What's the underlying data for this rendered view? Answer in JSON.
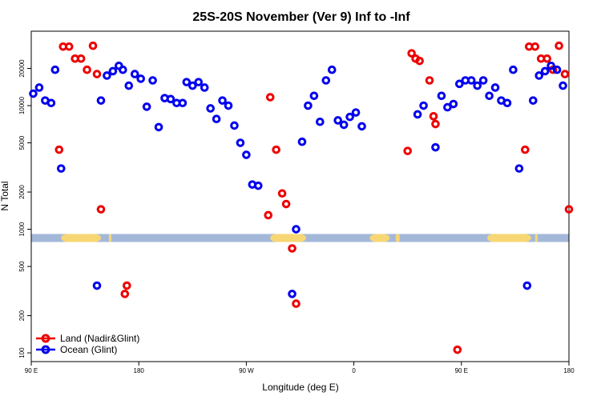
{
  "chart_data": {
    "type": "scatter",
    "title": "25S-20S November (Ver 9)   Inf to -Inf",
    "xlabel": "Longitude (deg E)",
    "ylabel": "N Total",
    "y_scale": "log",
    "xlim": [
      -90,
      180
    ],
    "ylim": [
      85,
      40000
    ],
    "x_ticks": [
      {
        "value": -90,
        "label": "90 E"
      },
      {
        "value": -36,
        "label": "180"
      },
      {
        "value": 18,
        "label": "90 W"
      },
      {
        "value": 72,
        "label": "0"
      },
      {
        "value": 126,
        "label": "90 E"
      },
      {
        "value": 180,
        "label": "180"
      }
    ],
    "y_ticks": [
      {
        "value": 100,
        "label": "100"
      },
      {
        "value": 200,
        "label": "200"
      },
      {
        "value": 500,
        "label": "500"
      },
      {
        "value": 1000,
        "label": "1000"
      },
      {
        "value": 2000,
        "label": "2000"
      },
      {
        "value": 5000,
        "label": "5000"
      },
      {
        "value": 10000,
        "label": "10000"
      },
      {
        "value": 20000,
        "label": "20000"
      }
    ],
    "surface_band": {
      "y_value": 850,
      "ocean_color": "#a3b8d9",
      "land_color": "#f7d774",
      "land_segments": [
        [
          -75,
          -55
        ],
        [
          -51,
          -51
        ],
        [
          30,
          48
        ],
        [
          80,
          90
        ],
        [
          93,
          95
        ],
        [
          139,
          161
        ],
        [
          163,
          163
        ]
      ]
    },
    "legend": {
      "position": "bottom-left"
    },
    "series": [
      {
        "name": "Land (Nadir&Glint)",
        "color": "#ee0000",
        "points": [
          [
            -76,
            4400
          ],
          [
            -74,
            30000
          ],
          [
            -71,
            30000
          ],
          [
            -68,
            24000
          ],
          [
            -65,
            24000
          ],
          [
            -62,
            19500
          ],
          [
            -59,
            30500
          ],
          [
            -57,
            18000
          ],
          [
            -55,
            1450
          ],
          [
            -43,
            300
          ],
          [
            -42,
            350
          ],
          [
            29,
            1300
          ],
          [
            30,
            11700
          ],
          [
            33,
            4400
          ],
          [
            36,
            1950
          ],
          [
            38,
            1600
          ],
          [
            41,
            700
          ],
          [
            43,
            250
          ],
          [
            99,
            4300
          ],
          [
            101,
            26500
          ],
          [
            103,
            24000
          ],
          [
            105,
            23000
          ],
          [
            110,
            16000
          ],
          [
            112,
            8200
          ],
          [
            113,
            7100
          ],
          [
            124,
            106
          ],
          [
            158,
            4400
          ],
          [
            160,
            30000
          ],
          [
            163,
            30000
          ],
          [
            166,
            24000
          ],
          [
            169,
            24000
          ],
          [
            172,
            19500
          ],
          [
            175,
            30500
          ],
          [
            178,
            18000
          ],
          [
            180,
            1450
          ]
        ]
      },
      {
        "name": "Ocean (Glint)",
        "color": "#0000ee",
        "points": [
          [
            -89,
            12500
          ],
          [
            -86,
            14000
          ],
          [
            -83,
            11000
          ],
          [
            -80,
            10500
          ],
          [
            -78,
            19500
          ],
          [
            -75,
            3100
          ],
          [
            -57,
            350
          ],
          [
            -55,
            11000
          ],
          [
            -52,
            17500
          ],
          [
            -49,
            19000
          ],
          [
            -46,
            21000
          ],
          [
            -44,
            19500
          ],
          [
            -41,
            14500
          ],
          [
            -38,
            18000
          ],
          [
            -35,
            16500
          ],
          [
            -32,
            9800
          ],
          [
            -29,
            16000
          ],
          [
            -26,
            6700
          ],
          [
            -23,
            11500
          ],
          [
            -20,
            11300
          ],
          [
            -17,
            10500
          ],
          [
            -14,
            10500
          ],
          [
            -12,
            15500
          ],
          [
            -9,
            14500
          ],
          [
            -6,
            15500
          ],
          [
            -3,
            14000
          ],
          [
            0,
            9500
          ],
          [
            3,
            7800
          ],
          [
            6,
            11000
          ],
          [
            9,
            10000
          ],
          [
            12,
            6900
          ],
          [
            15,
            5000
          ],
          [
            18,
            4000
          ],
          [
            21,
            2300
          ],
          [
            24,
            2250
          ],
          [
            41,
            300
          ],
          [
            43,
            1000
          ],
          [
            46,
            5100
          ],
          [
            49,
            10000
          ],
          [
            52,
            12000
          ],
          [
            55,
            7400
          ],
          [
            58,
            16000
          ],
          [
            61,
            19500
          ],
          [
            64,
            7600
          ],
          [
            67,
            7000
          ],
          [
            70,
            8100
          ],
          [
            73,
            8800
          ],
          [
            76,
            6800
          ],
          [
            104,
            8500
          ],
          [
            107,
            10000
          ],
          [
            113,
            4600
          ],
          [
            116,
            12000
          ],
          [
            119,
            9700
          ],
          [
            122,
            10300
          ],
          [
            125,
            15000
          ],
          [
            128,
            16000
          ],
          [
            131,
            16000
          ],
          [
            134,
            14500
          ],
          [
            137,
            16000
          ],
          [
            140,
            12000
          ],
          [
            143,
            14000
          ],
          [
            146,
            11000
          ],
          [
            149,
            10500
          ],
          [
            152,
            19500
          ],
          [
            155,
            3100
          ],
          [
            159,
            350
          ],
          [
            162,
            11000
          ],
          [
            165,
            17500
          ],
          [
            168,
            19000
          ],
          [
            171,
            21000
          ],
          [
            174,
            19500
          ],
          [
            177,
            14500
          ]
        ]
      }
    ]
  }
}
